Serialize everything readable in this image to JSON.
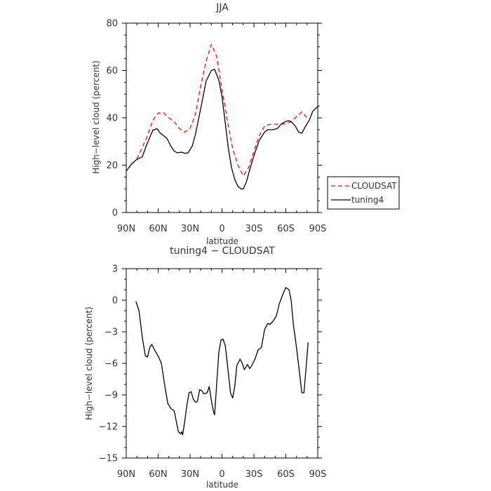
{
  "chart_data": [
    {
      "type": "line",
      "title": "JJA",
      "xlabel": "latitude",
      "ylabel": "High−level cloud (percent)",
      "xlim": [
        90,
        -90
      ],
      "ylim": [
        0,
        80
      ],
      "x_ticks": [
        90,
        60,
        30,
        0,
        -30,
        -60,
        -90
      ],
      "x_tick_labels": [
        "90N",
        "60N",
        "30N",
        "0",
        "30S",
        "60S",
        "90S"
      ],
      "y_ticks": [
        0,
        20,
        40,
        60,
        80
      ],
      "y_tick_labels": [
        "0",
        "20",
        "40",
        "60",
        "80"
      ],
      "legend_position": "right",
      "series": [
        {
          "name": "CLOUDSAT",
          "color": "#ff0000",
          "dash": "dashed",
          "points": [
            [
              80,
              22.6
            ],
            [
              75,
              27.5
            ],
            [
              70,
              32.5
            ],
            [
              65,
              39
            ],
            [
              60,
              42
            ],
            [
              55,
              42.2
            ],
            [
              50,
              40
            ],
            [
              45,
              38.5
            ],
            [
              40,
              35.5
            ],
            [
              35,
              34
            ],
            [
              30,
              35.5
            ],
            [
              25,
              41.5
            ],
            [
              20,
              53.5
            ],
            [
              15,
              64
            ],
            [
              10,
              71
            ],
            [
              5,
              66
            ],
            [
              0,
              52
            ],
            [
              -5,
              39
            ],
            [
              -10,
              27
            ],
            [
              -15,
              20
            ],
            [
              -20,
              15.5
            ],
            [
              -25,
              19
            ],
            [
              -30,
              26
            ],
            [
              -35,
              32.5
            ],
            [
              -40,
              36.5
            ],
            [
              -45,
              37.3
            ],
            [
              -50,
              37.3
            ],
            [
              -55,
              37.3
            ],
            [
              -60,
              37.5
            ],
            [
              -65,
              38.5
            ],
            [
              -70,
              40.5
            ],
            [
              -75,
              42.5
            ],
            [
              -80,
              40
            ]
          ]
        },
        {
          "name": "tuning4",
          "color": "#000000",
          "dash": "solid",
          "points": [
            [
              90,
              17.5
            ],
            [
              85,
              20.5
            ],
            [
              80,
              22.5
            ],
            [
              75,
              23.5
            ],
            [
              70,
              29.5
            ],
            [
              65,
              34.8
            ],
            [
              61,
              35.4
            ],
            [
              58,
              33.5
            ],
            [
              55,
              32.5
            ],
            [
              52,
              31.5
            ],
            [
              48,
              28
            ],
            [
              45,
              26
            ],
            [
              42,
              25.2
            ],
            [
              38,
              25.5
            ],
            [
              35,
              25
            ],
            [
              32,
              25.2
            ],
            [
              28,
              28
            ],
            [
              25,
              33
            ],
            [
              20,
              44
            ],
            [
              15,
              55.5
            ],
            [
              10,
              60
            ],
            [
              7,
              60.5
            ],
            [
              3,
              56
            ],
            [
              0,
              49
            ],
            [
              -3,
              38
            ],
            [
              -6,
              27
            ],
            [
              -9,
              19
            ],
            [
              -12,
              14
            ],
            [
              -15,
              11
            ],
            [
              -18,
              10
            ],
            [
              -20,
              10
            ],
            [
              -23,
              13
            ],
            [
              -26,
              18
            ],
            [
              -30,
              24
            ],
            [
              -35,
              30.5
            ],
            [
              -40,
              34
            ],
            [
              -43,
              35
            ],
            [
              -48,
              35
            ],
            [
              -52,
              35.5
            ],
            [
              -56,
              37.5
            ],
            [
              -60,
              38.5
            ],
            [
              -63,
              38.8
            ],
            [
              -66,
              38
            ],
            [
              -69,
              36.5
            ],
            [
              -72,
              34
            ],
            [
              -75,
              33.5
            ],
            [
              -78,
              36
            ],
            [
              -82,
              39
            ],
            [
              -85,
              42.5
            ],
            [
              -88,
              44
            ],
            [
              -90,
              44.8
            ]
          ]
        }
      ]
    },
    {
      "type": "line",
      "title": "tuning4 − CLOUDSAT",
      "xlabel": "latitude",
      "ylabel": "High−level cloud (percent)",
      "xlim": [
        90,
        -90
      ],
      "ylim": [
        -15,
        3
      ],
      "x_ticks": [
        90,
        60,
        30,
        0,
        -30,
        -60,
        -90
      ],
      "x_tick_labels": [
        "90N",
        "60N",
        "30N",
        "0",
        "30S",
        "60S",
        "90S"
      ],
      "y_ticks": [
        -15,
        -12,
        -9,
        -6,
        -3,
        0,
        3
      ],
      "y_tick_labels": [
        "−15",
        "−12",
        "−9",
        "−6",
        "−3",
        "0",
        "3"
      ],
      "series": [
        {
          "name": "",
          "color": "#000000",
          "dash": "solid",
          "points": [
            [
              81,
              -0.1
            ],
            [
              78,
              -1
            ],
            [
              75,
              -3.5
            ],
            [
              72,
              -5.3
            ],
            [
              70,
              -5.4
            ],
            [
              68,
              -4.5
            ],
            [
              66,
              -4.2
            ],
            [
              63,
              -4.8
            ],
            [
              60,
              -5.3
            ],
            [
              57,
              -6
            ],
            [
              54,
              -8
            ],
            [
              51,
              -9.8
            ],
            [
              48,
              -10.3
            ],
            [
              45,
              -10.5
            ],
            [
              43,
              -11.5
            ],
            [
              41,
              -12.5
            ],
            [
              39,
              -12.7
            ],
            [
              38,
              -12.5
            ],
            [
              37,
              -12.8
            ],
            [
              35,
              -11.5
            ],
            [
              33,
              -10
            ],
            [
              31,
              -8.8
            ],
            [
              29,
              -8.7
            ],
            [
              27,
              -9.4
            ],
            [
              25,
              -9.7
            ],
            [
              23,
              -9.6
            ],
            [
              21,
              -8.5
            ],
            [
              19,
              -8.6
            ],
            [
              17,
              -8.9
            ],
            [
              14,
              -8.8
            ],
            [
              12,
              -8.2
            ],
            [
              10,
              -9.5
            ],
            [
              8,
              -10.6
            ],
            [
              7,
              -10.9
            ],
            [
              5,
              -8
            ],
            [
              3,
              -5
            ],
            [
              1,
              -3.8
            ],
            [
              -1,
              -3.7
            ],
            [
              -3,
              -4.3
            ],
            [
              -5,
              -6
            ],
            [
              -8,
              -8.8
            ],
            [
              -10,
              -9.3
            ],
            [
              -12,
              -8.2
            ],
            [
              -14,
              -6.2
            ],
            [
              -17,
              -5.6
            ],
            [
              -19,
              -6
            ],
            [
              -21,
              -6.6
            ],
            [
              -24,
              -6.1
            ],
            [
              -26,
              -6.5
            ],
            [
              -28,
              -6.2
            ],
            [
              -31,
              -5.6
            ],
            [
              -34,
              -4.7
            ],
            [
              -37,
              -4.5
            ],
            [
              -40,
              -2.8
            ],
            [
              -43,
              -2.2
            ],
            [
              -45,
              -2.3
            ],
            [
              -48,
              -2
            ],
            [
              -51,
              -1.5
            ],
            [
              -54,
              -0.3
            ],
            [
              -57,
              0.5
            ],
            [
              -60,
              1.2
            ],
            [
              -63,
              1
            ],
            [
              -65,
              0
            ],
            [
              -67,
              -2.2
            ],
            [
              -70,
              -4.5
            ],
            [
              -73,
              -7
            ],
            [
              -75,
              -8.8
            ],
            [
              -77,
              -8.8
            ],
            [
              -79,
              -6.5
            ],
            [
              -81,
              -4
            ]
          ]
        }
      ]
    }
  ]
}
